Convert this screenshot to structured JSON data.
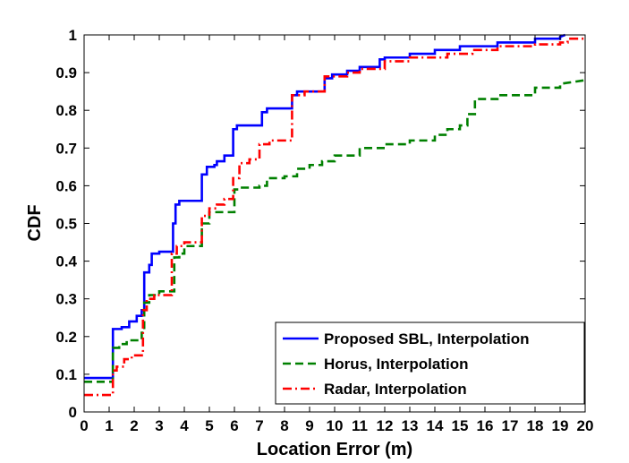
{
  "chart_data": {
    "type": "line",
    "title": "",
    "xlabel": "Location Error (m)",
    "ylabel": "CDF",
    "xlim": [
      0,
      20
    ],
    "ylim": [
      0,
      1
    ],
    "x_ticks": [
      "0",
      "1",
      "2",
      "3",
      "4",
      "5",
      "6",
      "7",
      "8",
      "9",
      "10",
      "11",
      "12",
      "13",
      "14",
      "15",
      "16",
      "17",
      "18",
      "19",
      "20"
    ],
    "y_ticks": [
      "0",
      "0.1",
      "0.2",
      "0.3",
      "0.4",
      "0.5",
      "0.6",
      "0.7",
      "0.8",
      "0.9",
      "1"
    ],
    "grid": false,
    "legend_position": "bottom-right",
    "series": [
      {
        "name": "Proposed SBL, Interpolation",
        "color": "#0000ff",
        "style": "solid",
        "x": [
          0,
          1.15,
          1.15,
          1.5,
          1.5,
          1.8,
          1.8,
          2.1,
          2.1,
          2.3,
          2.3,
          2.4,
          2.4,
          2.6,
          2.6,
          2.7,
          2.7,
          3.0,
          3.0,
          3.55,
          3.55,
          3.65,
          3.65,
          3.8,
          3.8,
          4.7,
          4.7,
          4.9,
          4.9,
          5.2,
          5.2,
          5.3,
          5.3,
          5.6,
          5.6,
          5.95,
          5.95,
          6.1,
          6.1,
          7.1,
          7.1,
          7.3,
          7.3,
          8.3,
          8.3,
          8.5,
          8.5,
          9.6,
          9.6,
          9.9,
          9.9,
          10.5,
          10.5,
          11.0,
          11.0,
          11.8,
          11.8,
          12.0,
          12.0,
          13.0,
          13.0,
          14.0,
          14.0,
          15.0,
          15.0,
          16.5,
          16.5,
          18.0,
          18.0,
          19.0,
          19.0,
          19.2
        ],
        "y": [
          0.09,
          0.09,
          0.22,
          0.22,
          0.225,
          0.225,
          0.24,
          0.24,
          0.255,
          0.255,
          0.27,
          0.27,
          0.37,
          0.37,
          0.39,
          0.39,
          0.42,
          0.42,
          0.425,
          0.425,
          0.5,
          0.5,
          0.55,
          0.55,
          0.56,
          0.56,
          0.63,
          0.63,
          0.65,
          0.65,
          0.655,
          0.655,
          0.665,
          0.665,
          0.68,
          0.68,
          0.75,
          0.75,
          0.76,
          0.76,
          0.795,
          0.795,
          0.805,
          0.805,
          0.84,
          0.84,
          0.85,
          0.85,
          0.885,
          0.885,
          0.895,
          0.895,
          0.905,
          0.905,
          0.915,
          0.915,
          0.935,
          0.935,
          0.94,
          0.94,
          0.95,
          0.95,
          0.96,
          0.96,
          0.97,
          0.97,
          0.98,
          0.98,
          0.99,
          0.99,
          0.995,
          1.0
        ]
      },
      {
        "name": "Horus, Interpolation",
        "color": "#008000",
        "style": "dashed",
        "x": [
          0,
          1.15,
          1.15,
          1.4,
          1.4,
          1.7,
          1.7,
          2.3,
          2.3,
          2.4,
          2.4,
          2.6,
          2.6,
          3.0,
          3.0,
          3.6,
          3.6,
          3.8,
          3.8,
          4.0,
          4.0,
          4.7,
          4.7,
          5.0,
          5.0,
          6.0,
          6.0,
          6.3,
          6.3,
          7.0,
          7.0,
          7.3,
          7.3,
          8.0,
          8.0,
          8.5,
          8.5,
          9.0,
          9.0,
          9.5,
          9.5,
          10.0,
          10.0,
          11.0,
          11.0,
          12.0,
          12.0,
          13.0,
          13.0,
          14.0,
          14.0,
          14.5,
          14.5,
          15.0,
          15.0,
          15.3,
          15.3,
          15.6,
          15.6,
          16.5,
          16.5,
          18.0,
          18.0,
          19.0,
          19.0,
          20.0
        ],
        "y": [
          0.08,
          0.08,
          0.17,
          0.17,
          0.18,
          0.18,
          0.19,
          0.19,
          0.21,
          0.21,
          0.29,
          0.29,
          0.31,
          0.31,
          0.32,
          0.32,
          0.41,
          0.41,
          0.42,
          0.42,
          0.44,
          0.44,
          0.5,
          0.5,
          0.53,
          0.53,
          0.59,
          0.59,
          0.595,
          0.595,
          0.6,
          0.6,
          0.62,
          0.62,
          0.625,
          0.625,
          0.645,
          0.645,
          0.655,
          0.655,
          0.665,
          0.665,
          0.68,
          0.68,
          0.7,
          0.7,
          0.71,
          0.71,
          0.72,
          0.72,
          0.735,
          0.735,
          0.75,
          0.75,
          0.76,
          0.76,
          0.79,
          0.79,
          0.83,
          0.83,
          0.84,
          0.84,
          0.86,
          0.86,
          0.87,
          0.88
        ]
      },
      {
        "name": "Radar, Interpolation",
        "color": "#ff0000",
        "style": "dashdot",
        "x": [
          0,
          1.15,
          1.15,
          1.3,
          1.3,
          1.6,
          1.6,
          1.9,
          1.9,
          2.35,
          2.35,
          2.5,
          2.5,
          2.8,
          2.8,
          3.5,
          3.5,
          3.7,
          3.7,
          4.0,
          4.0,
          4.7,
          4.7,
          5.0,
          5.0,
          5.3,
          5.3,
          5.6,
          5.6,
          5.95,
          5.95,
          6.2,
          6.2,
          6.6,
          6.6,
          7.0,
          7.0,
          7.4,
          7.4,
          8.3,
          8.3,
          8.8,
          8.8,
          9.6,
          9.6,
          10.5,
          10.5,
          11.0,
          11.0,
          12.0,
          12.0,
          13.0,
          13.0,
          14.5,
          14.5,
          15.5,
          15.5,
          16.5,
          16.5,
          18.0,
          18.0,
          19.0,
          19.0,
          19.3,
          19.3,
          20.0
        ],
        "y": [
          0.045,
          0.045,
          0.11,
          0.11,
          0.12,
          0.12,
          0.14,
          0.14,
          0.15,
          0.15,
          0.27,
          0.27,
          0.3,
          0.3,
          0.31,
          0.31,
          0.42,
          0.42,
          0.44,
          0.44,
          0.45,
          0.45,
          0.52,
          0.52,
          0.54,
          0.54,
          0.55,
          0.55,
          0.565,
          0.565,
          0.62,
          0.62,
          0.66,
          0.66,
          0.67,
          0.67,
          0.71,
          0.71,
          0.72,
          0.72,
          0.84,
          0.84,
          0.85,
          0.85,
          0.89,
          0.89,
          0.9,
          0.9,
          0.91,
          0.91,
          0.93,
          0.93,
          0.94,
          0.94,
          0.95,
          0.95,
          0.96,
          0.96,
          0.97,
          0.97,
          0.975,
          0.975,
          0.98,
          0.98,
          0.99,
          0.99
        ]
      }
    ]
  }
}
